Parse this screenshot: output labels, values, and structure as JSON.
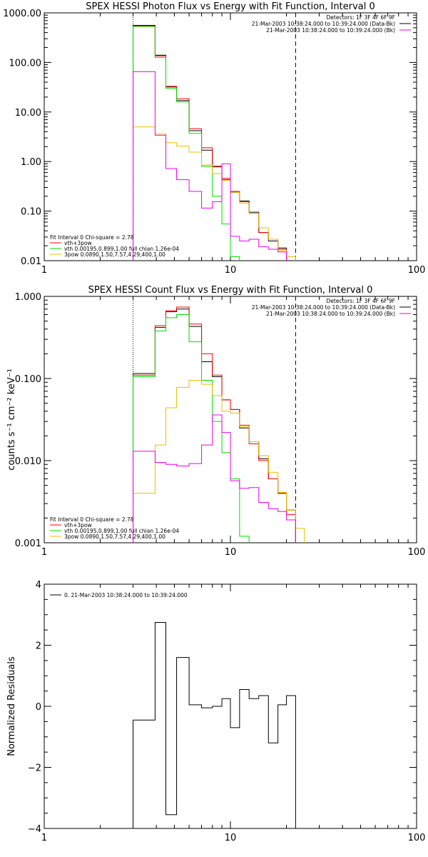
{
  "panels": [
    {
      "title": "SPEX HESSI Photon Flux vs Energy with Fit Function, Interval 0",
      "ylabel": "",
      "yscale": "log",
      "ylim": [
        0.01,
        1000
      ],
      "yticks": [
        0.01,
        0.1,
        1,
        10,
        100,
        1000
      ],
      "yticklabels": [
        "0.01",
        "0.10",
        "1.00",
        "10.00",
        "100.00",
        "1000.00"
      ],
      "legend_right": [
        "Detectors: 1F 3F 4F 6F 9F",
        "21-Mar-2003 10:38:24.000 to 10:39:24.000 (Data-Bk)",
        "21-Mar-2003 10:38:24.000 to 10:39:24.000 (Bk)"
      ],
      "legend_left": [
        "Fit Interval 0   Chi-square = 2.78",
        "vth+3pow",
        "vth 0.00195,0.899,1.00  full chian 1.26e-04",
        "3pow 0.0890,1.50,7.57,4.29,400,1.00"
      ]
    },
    {
      "title": "SPEX HESSI Count Flux vs Energy with Fit Function, Interval 0",
      "ylabel": "counts s⁻¹ cm⁻² keV⁻¹",
      "yscale": "log",
      "ylim": [
        0.001,
        1
      ],
      "yticks": [
        0.001,
        0.01,
        0.1,
        1
      ],
      "yticklabels": [
        "0.001",
        "0.010",
        "0.100",
        "1.000"
      ],
      "legend_right": [
        "Detectors: 1F 3F 4F 6F 9F",
        "21-Mar-2003 10:38:24.000 to 10:39:24.000 (Data-Bk)",
        "21-Mar-2003 10:38:24.000 to 10:39:24.000 (Bk)"
      ],
      "legend_left": [
        "Fit Interval 0   Chi-square = 2.78",
        "vth+3pow",
        "vth 0.00195,0.899,1.00  full chian 1.26e-04",
        "3pow 0.0890,1.50,7.57,4.29,400,1.00"
      ]
    },
    {
      "title": "",
      "ylabel": "Normalized Residuals",
      "yscale": "linear",
      "ylim": [
        -4,
        4
      ],
      "yticks": [
        -4,
        -2,
        0,
        2,
        4
      ],
      "yticklabels": [
        "−4",
        "−2",
        "0",
        "2",
        "4"
      ],
      "legend_left": [
        "0. 21-Mar-2003 10:38:24.000 to 10:39:24.000"
      ]
    }
  ],
  "xaxis": {
    "scale": "log",
    "xlim": [
      1,
      100
    ],
    "ticks": [
      1,
      10,
      100
    ],
    "ticklabels": [
      "1",
      "10",
      "100"
    ],
    "vline_dotted": 3,
    "vline_dashed": 22.4
  },
  "colors": {
    "black": "#000000",
    "red": "#ff0000",
    "green": "#00dd00",
    "yellow": "#e8c000",
    "magenta": "#ee00ee"
  },
  "chart_data": [
    {
      "type": "line",
      "title": "SPEX HESSI Photon Flux vs Energy with Fit Function, Interval 0",
      "xscale": "log",
      "yscale": "log",
      "xlim": [
        1,
        100
      ],
      "ylim": [
        0.01,
        1000
      ],
      "bin_edges": [
        3.0,
        3.94,
        4.5,
        5.14,
        6.0,
        7.0,
        8.0,
        9.0,
        10.0,
        11.2,
        12.6,
        14.2,
        16.0,
        18.0,
        20.0,
        22.4,
        25.0
      ],
      "series": [
        {
          "color": "#000000",
          "values": [
            560,
            140,
            32,
            17,
            4.2,
            1.7,
            0.8,
            0.43,
            0.24,
            0.16,
            0.095,
            0.037,
            0.025,
            0.018,
            null,
            null
          ]
        },
        {
          "color": "#ff0000",
          "values": [
            540,
            135,
            33,
            18.5,
            4.6,
            1.9,
            0.78,
            0.46,
            0.25,
            0.155,
            0.09,
            0.037,
            0.027,
            0.017,
            null,
            null
          ]
        },
        {
          "color": "#00dd00",
          "values": [
            530,
            125,
            30,
            16,
            3.7,
            0.8,
            0.2,
            0.055,
            0.012,
            null,
            null,
            null,
            null,
            null,
            null,
            null
          ]
        },
        {
          "color": "#e8c000",
          "values": [
            5,
            3.6,
            2.4,
            2.05,
            1.55,
            0.85,
            0.57,
            0.42,
            0.24,
            0.145,
            0.09,
            0.046,
            0.027,
            0.016,
            0.012,
            null
          ]
        },
        {
          "color": "#ee00ee",
          "values": [
            65,
            3.4,
            0.72,
            0.43,
            0.25,
            0.115,
            0.155,
            0.9,
            0.031,
            0.025,
            0.027,
            0.019,
            0.017,
            0.015,
            null,
            null
          ]
        }
      ]
    },
    {
      "type": "line",
      "title": "SPEX HESSI Count Flux vs Energy with Fit Function, Interval 0",
      "xscale": "log",
      "yscale": "log",
      "xlim": [
        1,
        100
      ],
      "ylim": [
        0.001,
        1
      ],
      "bin_edges": [
        3.0,
        3.94,
        4.5,
        5.14,
        6.0,
        7.0,
        8.0,
        9.0,
        10.0,
        11.2,
        12.6,
        14.2,
        16.0,
        18.0,
        20.0,
        22.4,
        25.0
      ],
      "series": [
        {
          "color": "#000000",
          "values": [
            0.115,
            0.42,
            0.65,
            0.7,
            0.43,
            0.16,
            0.105,
            0.055,
            0.042,
            0.025,
            0.017,
            0.0105,
            0.006,
            0.004,
            0.0025,
            null
          ]
        },
        {
          "color": "#ff0000",
          "values": [
            0.11,
            0.44,
            0.67,
            0.74,
            0.46,
            0.2,
            0.11,
            0.055,
            0.042,
            0.027,
            0.016,
            0.01,
            0.006,
            0.004,
            0.0022,
            null
          ]
        },
        {
          "color": "#00dd00",
          "values": [
            0.105,
            0.38,
            0.55,
            0.6,
            0.28,
            0.095,
            0.03,
            0.0125,
            0.006,
            0.0012,
            null,
            null,
            null,
            null,
            null,
            null
          ]
        },
        {
          "color": "#e8c000",
          "values": [
            0.004,
            0.0155,
            0.044,
            0.078,
            0.095,
            0.085,
            0.062,
            0.04,
            0.038,
            0.026,
            0.017,
            0.0115,
            0.0072,
            0.0041,
            0.0025,
            0.0015
          ]
        },
        {
          "color": "#ee00ee",
          "values": [
            0.013,
            0.0095,
            0.009,
            0.0086,
            0.0092,
            0.0155,
            0.036,
            0.022,
            0.0057,
            0.0046,
            0.0047,
            0.0031,
            0.0026,
            0.0024,
            0.0019,
            null
          ]
        }
      ]
    },
    {
      "type": "line",
      "ylabel": "Normalized Residuals",
      "xscale": "log",
      "yscale": "linear",
      "xlim": [
        1,
        100
      ],
      "ylim": [
        -4,
        4
      ],
      "bin_edges": [
        3.0,
        3.94,
        4.5,
        5.14,
        6.0,
        7.0,
        8.0,
        9.0,
        10.0,
        11.2,
        12.6,
        14.2,
        16.0,
        18.0,
        20.0,
        22.4
      ],
      "series": [
        {
          "name": "0. 21-Mar-2003 10:38:24.000 to 10:39:24.000",
          "color": "#000000",
          "values": [
            -0.45,
            2.75,
            -3.55,
            1.6,
            0.05,
            -0.05,
            0.0,
            0.25,
            -0.7,
            0.55,
            0.25,
            0.35,
            -1.2,
            0.05,
            0.35
          ]
        }
      ]
    }
  ]
}
